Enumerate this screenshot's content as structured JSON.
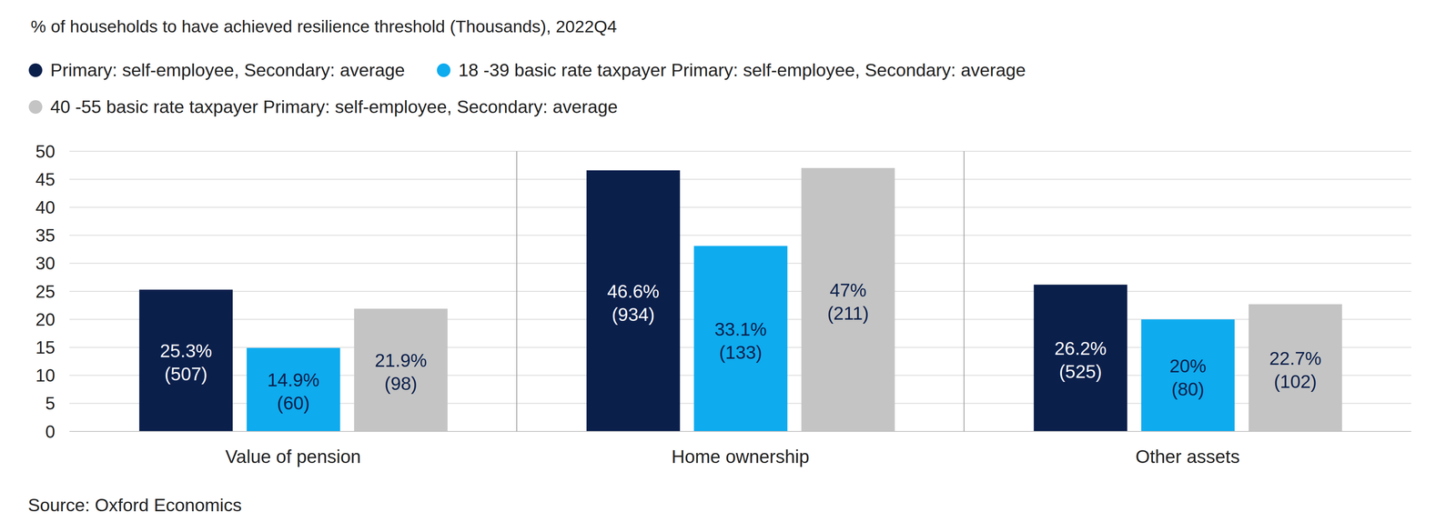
{
  "chart_data": {
    "type": "bar",
    "title": "% of households to have achieved resilience threshold (Thousands), 2022Q4",
    "categories": [
      "Value of pension",
      "Home ownership",
      "Other assets"
    ],
    "series": [
      {
        "name": "Primary: self-employee, Secondary: average",
        "color": "#0b1f4b",
        "values": [
          25.3,
          46.6,
          26.2
        ],
        "value_labels": [
          "25.3%",
          "46.6%",
          "26.2%"
        ],
        "count_labels": [
          "(507)",
          "(934)",
          "(525)"
        ]
      },
      {
        "name": "18 -39 basic rate taxpayer Primary: self-employee, Secondary: average",
        "color": "#0eabef",
        "values": [
          14.9,
          33.1,
          20
        ],
        "value_labels": [
          "14.9%",
          "33.1%",
          "20%"
        ],
        "count_labels": [
          "(60)",
          "(133)",
          "(80)"
        ]
      },
      {
        "name": "40 -55 basic rate taxpayer Primary: self-employee, Secondary: average",
        "color": "#c4c4c4",
        "values": [
          21.9,
          47,
          22.7
        ],
        "value_labels": [
          "21.9%",
          "47%",
          "22.7%"
        ],
        "count_labels": [
          "(98)",
          "(211)",
          "(102)"
        ]
      }
    ],
    "ylim": [
      0,
      50
    ],
    "yticks": [
      0,
      5,
      10,
      15,
      20,
      25,
      30,
      35,
      40,
      45,
      50
    ],
    "grid": true,
    "data_labels": true,
    "legend": "top-left",
    "source": "Source: Oxford Economics"
  }
}
